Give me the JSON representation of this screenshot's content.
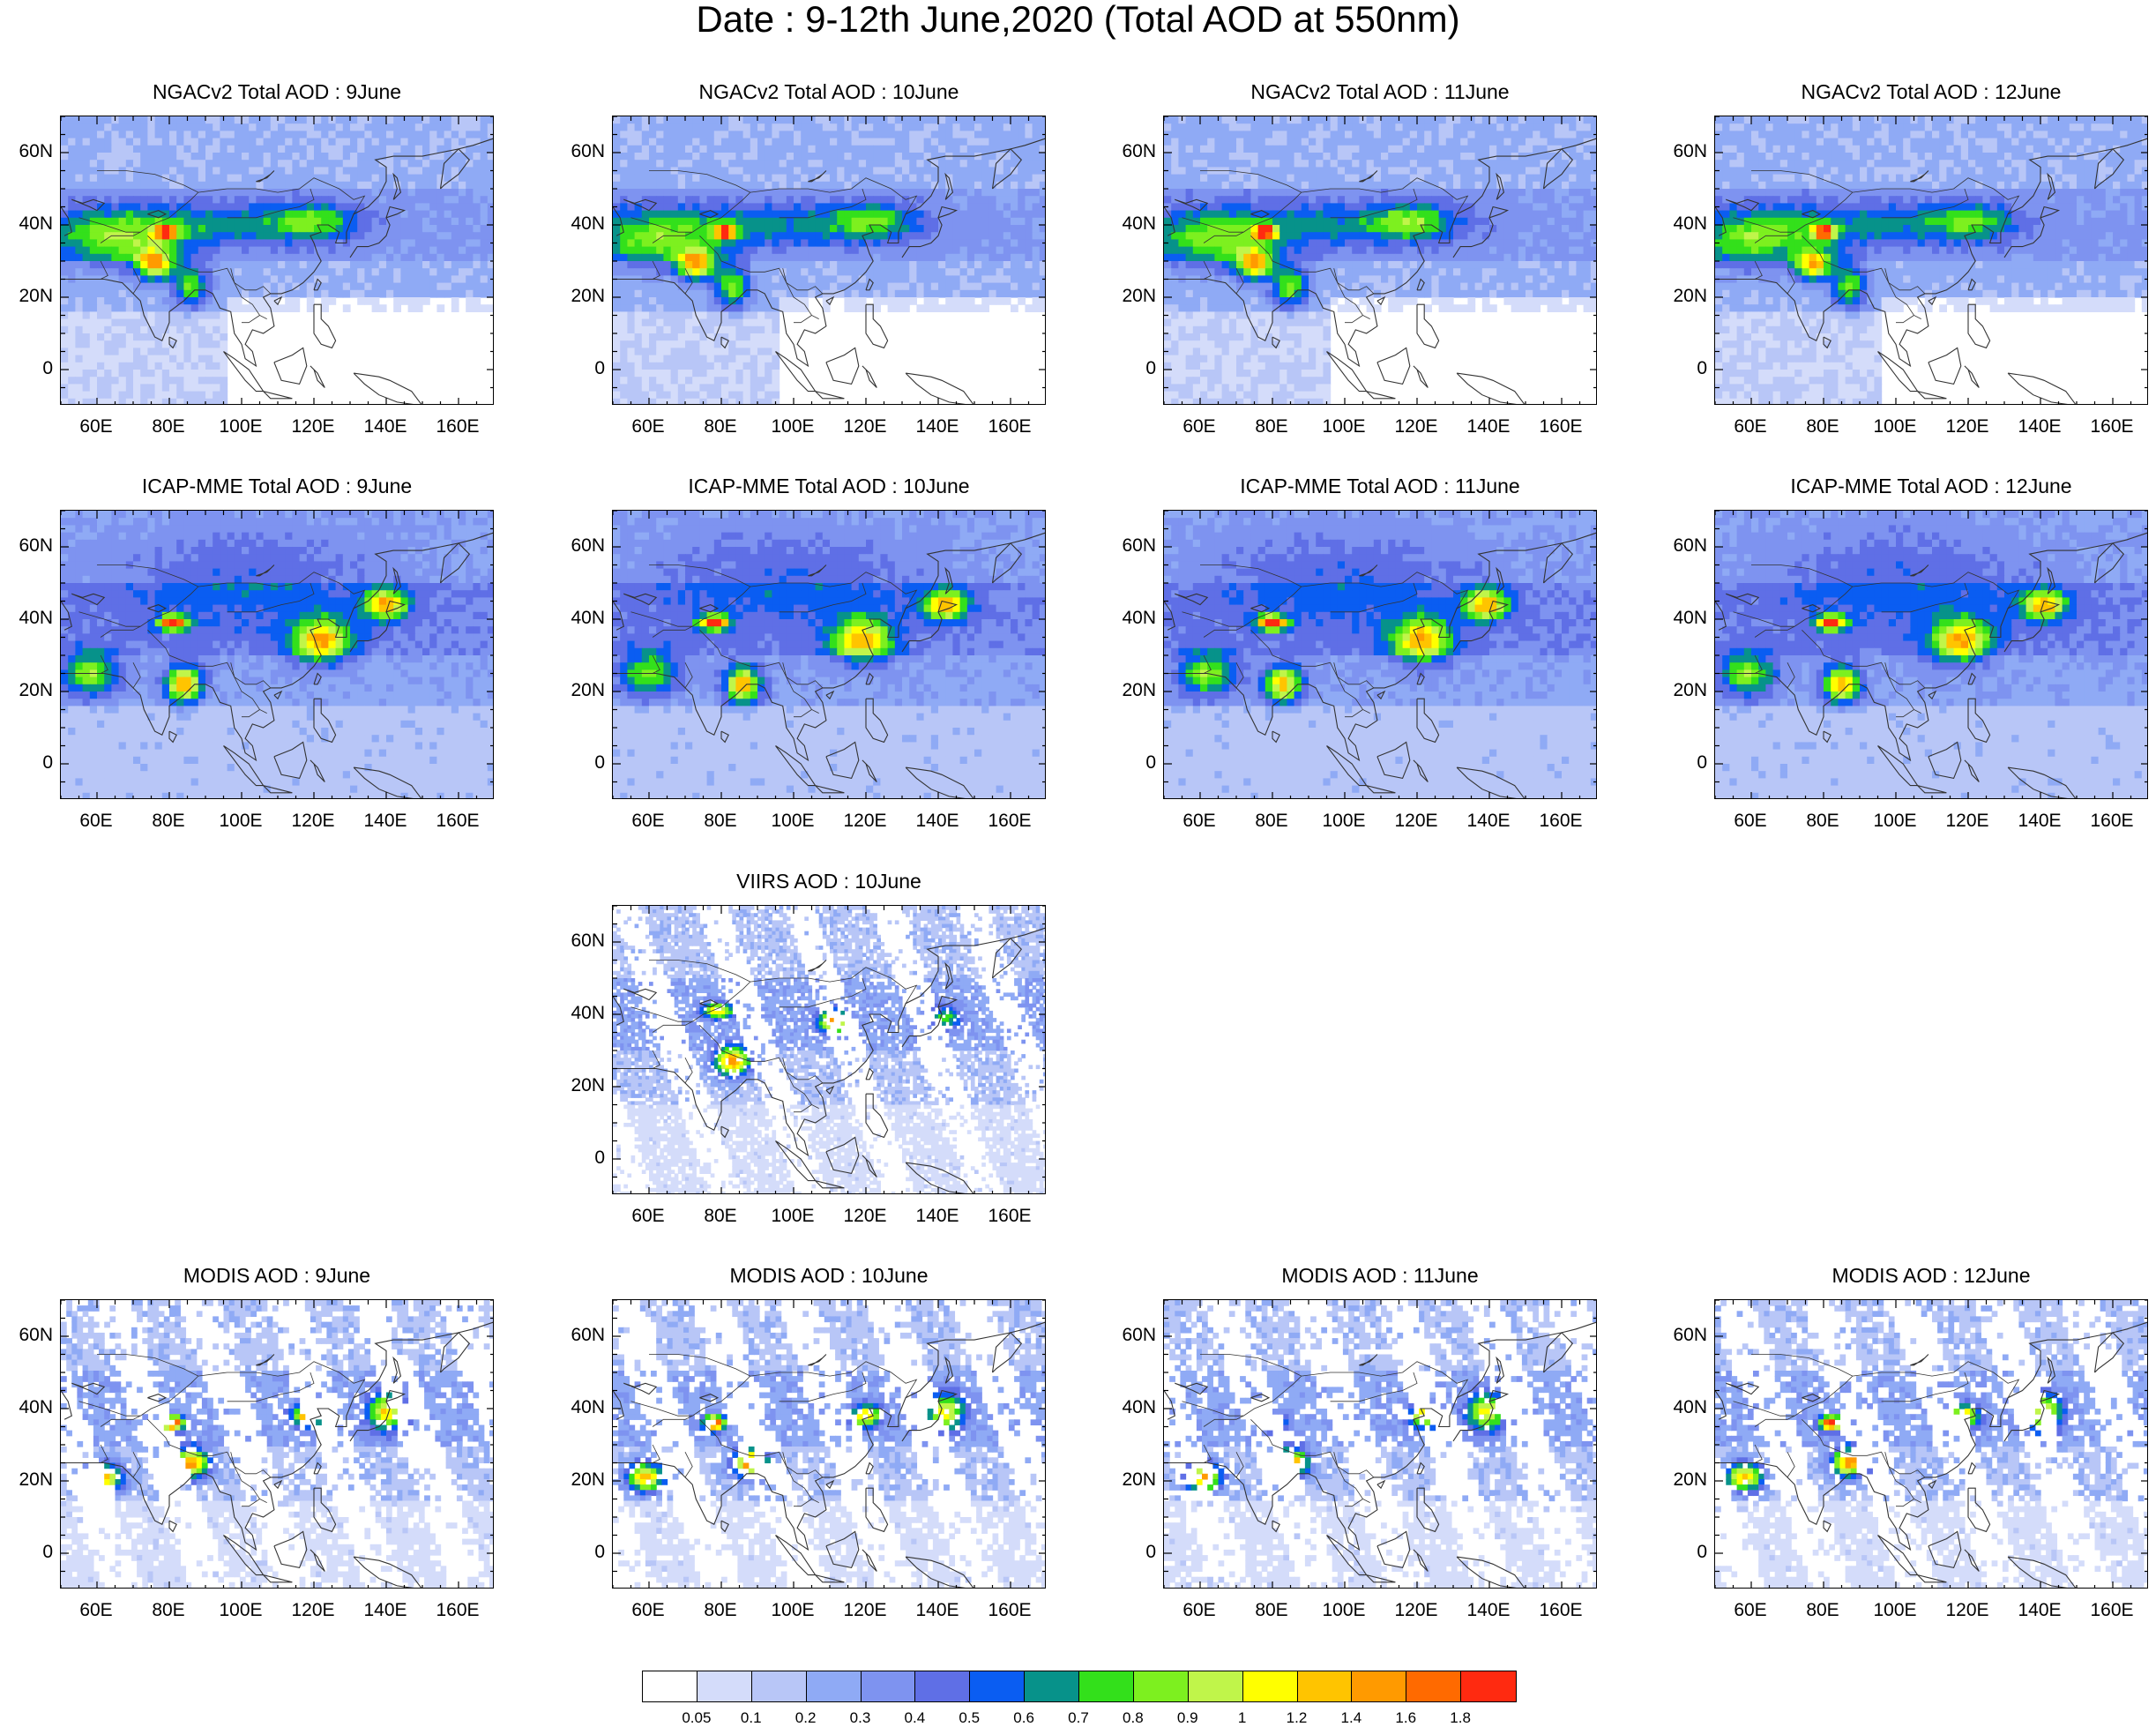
{
  "title": "Date : 9-12th June,2020 (Total AOD at 550nm)",
  "axes": {
    "y_ticks": [
      "60N",
      "40N",
      "20N",
      "0"
    ],
    "y_values": [
      60,
      40,
      20,
      0
    ],
    "x_ticks": [
      "60E",
      "80E",
      "100E",
      "120E",
      "140E",
      "160E"
    ],
    "x_values": [
      60,
      80,
      100,
      120,
      140,
      160
    ],
    "xlim": [
      50,
      170
    ],
    "ylim": [
      -10,
      70
    ]
  },
  "colorbar": {
    "labels": [
      "0.05",
      "0.1",
      "0.2",
      "0.3",
      "0.4",
      "0.5",
      "0.6",
      "0.7",
      "0.8",
      "0.9",
      "1",
      "1.2",
      "1.4",
      "1.6",
      "1.8"
    ],
    "colors": [
      "#ffffff",
      "#d4dcfa",
      "#b8c6f7",
      "#8faaf5",
      "#7e93f0",
      "#5f6fe6",
      "#0a5df2",
      "#07928a",
      "#33e01b",
      "#7df01f",
      "#c0f54a",
      "#ffff00",
      "#ffc400",
      "#ff9a00",
      "#ff6a00",
      "#ff2a10"
    ]
  },
  "chart_data": [
    {
      "type": "heatmap",
      "title": "NGACv2 Total AOD : 9June",
      "model": "ngac",
      "day": 9
    },
    {
      "type": "heatmap",
      "title": "NGACv2 Total AOD : 10June",
      "model": "ngac",
      "day": 10
    },
    {
      "type": "heatmap",
      "title": "NGACv2 Total AOD : 11June",
      "model": "ngac",
      "day": 11
    },
    {
      "type": "heatmap",
      "title": "NGACv2 Total AOD : 12June",
      "model": "ngac",
      "day": 12
    },
    {
      "type": "heatmap",
      "title": "ICAP-MME Total AOD : 9June",
      "model": "icap",
      "day": 9
    },
    {
      "type": "heatmap",
      "title": "ICAP-MME Total AOD : 10June",
      "model": "icap",
      "day": 10
    },
    {
      "type": "heatmap",
      "title": "ICAP-MME Total AOD : 11June",
      "model": "icap",
      "day": 11
    },
    {
      "type": "heatmap",
      "title": "ICAP-MME Total AOD : 12June",
      "model": "icap",
      "day": 12
    },
    {
      "type": "heatmap",
      "title": "VIIRS AOD : 10June",
      "model": "viirs",
      "day": 10
    },
    {
      "type": "heatmap",
      "title": "MODIS AOD : 9June",
      "model": "modis",
      "day": 9
    },
    {
      "type": "heatmap",
      "title": "MODIS AOD : 10June",
      "model": "modis",
      "day": 10
    },
    {
      "type": "heatmap",
      "title": "MODIS AOD : 11June",
      "model": "modis",
      "day": 11
    },
    {
      "type": "heatmap",
      "title": "MODIS AOD : 12June",
      "model": "modis",
      "day": 12
    }
  ]
}
